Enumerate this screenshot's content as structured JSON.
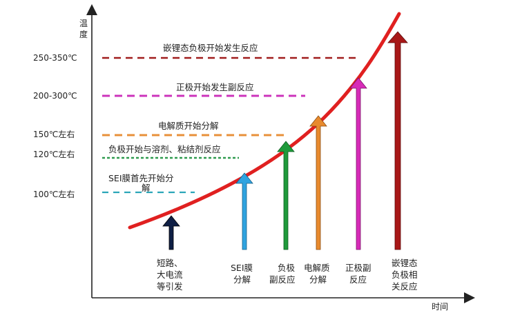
{
  "axes": {
    "y_title": [
      "温",
      "度"
    ],
    "x_title": "时间"
  },
  "levels": [
    {
      "id": "sei",
      "tick": "100℃左右",
      "label": [
        "SEI膜首先开始分",
        "解"
      ],
      "color": "#2aa6b8"
    },
    {
      "id": "neg-solvent",
      "tick": "120℃左右",
      "label": [
        "负极开始与溶剂、粘结剂反应"
      ],
      "color": "#2e9a4e"
    },
    {
      "id": "electrolyte",
      "tick": "150℃左右",
      "label": [
        "电解质开始分解"
      ],
      "color": "#e8903a"
    },
    {
      "id": "positive",
      "tick": "200-300℃",
      "label": [
        "正极开始发生副反应"
      ],
      "color": "#cc33bb"
    },
    {
      "id": "lithiated-neg",
      "tick": "250-350℃",
      "label": [
        "嵌锂态负极开始发生反应"
      ],
      "color": "#a01c1c"
    }
  ],
  "arrows": [
    {
      "id": "short-circuit",
      "label": [
        "短路、",
        "大电流",
        "等引发"
      ],
      "color": "#0f1f45"
    },
    {
      "id": "sei-decomp",
      "label": [
        "SEI膜",
        "分解"
      ],
      "color": "#2fa3e0"
    },
    {
      "id": "neg-side",
      "label": [
        "负极",
        "副反应"
      ],
      "color": "#1f9a3a"
    },
    {
      "id": "electrolyte-decomp",
      "label": [
        "电解质",
        "分解"
      ],
      "color": "#e88a2e"
    },
    {
      "id": "positive-side",
      "label": [
        "正极副",
        "反应"
      ],
      "color": "#d72bb8"
    },
    {
      "id": "lithiated-neg-rxn",
      "label": [
        "嵌锂态",
        "负极相",
        "关反应"
      ],
      "color": "#a81818"
    }
  ],
  "curve_color": "#e02020"
}
